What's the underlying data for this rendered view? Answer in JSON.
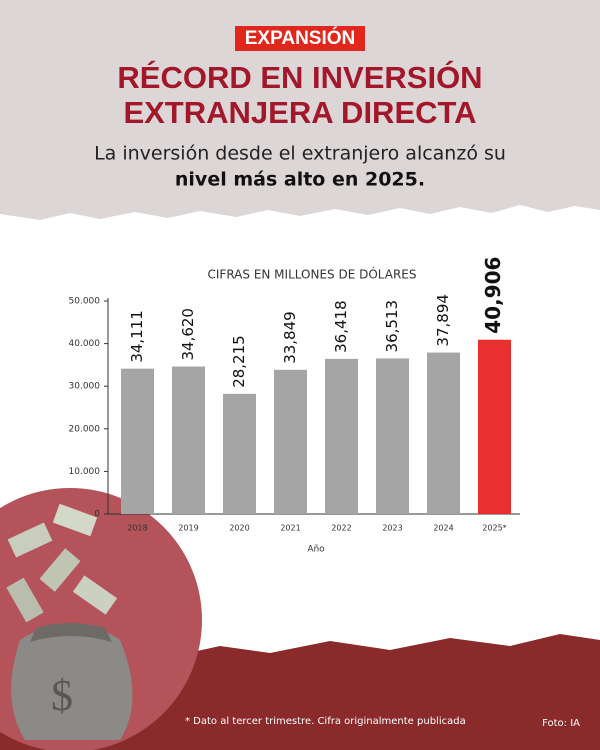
{
  "header": {
    "brand": "EXPANSIÓN",
    "title_lines": [
      "RÉCORD EN INVERSIÓN",
      "EXTRANJERA DIRECTA"
    ],
    "subtitle": "La inversión desde el extranjero alcanzó su",
    "subtitle_bold": "nivel más alto en 2025."
  },
  "chart_data": {
    "type": "bar",
    "title": "CIFRAS EN MILLONES DE DÓLARES",
    "x_label": "Año",
    "categories": [
      "2018",
      "2019",
      "2020",
      "2021",
      "2022",
      "2023",
      "2024",
      "2025*"
    ],
    "values": [
      34111,
      34620,
      28215,
      33849,
      36418,
      36513,
      37894,
      40906
    ],
    "value_labels": [
      "34,111",
      "34,620",
      "28,215",
      "33,849",
      "36,418",
      "36,513",
      "37,894",
      "40,906"
    ],
    "colors": [
      "#a5a5a5",
      "#a5a5a5",
      "#a5a5a5",
      "#a5a5a5",
      "#a5a5a5",
      "#a5a5a5",
      "#a5a5a5",
      "#e8302f"
    ],
    "ylim": [
      0,
      50000
    ],
    "yticks": [
      0,
      {
        "value": 10000,
        "label": "10.000"
      },
      {
        "value": 20000,
        "label": "20.000"
      },
      {
        "value": 30000,
        "label": "30.000"
      },
      {
        "value": 40000,
        "label": "40.000"
      },
      {
        "value": 50000,
        "label": "50.000"
      }
    ],
    "grid": false
  },
  "footer": {
    "note": "* Dato al tercer trimestre. Cifra originalmente publicada",
    "credit": "Foto: IA"
  }
}
